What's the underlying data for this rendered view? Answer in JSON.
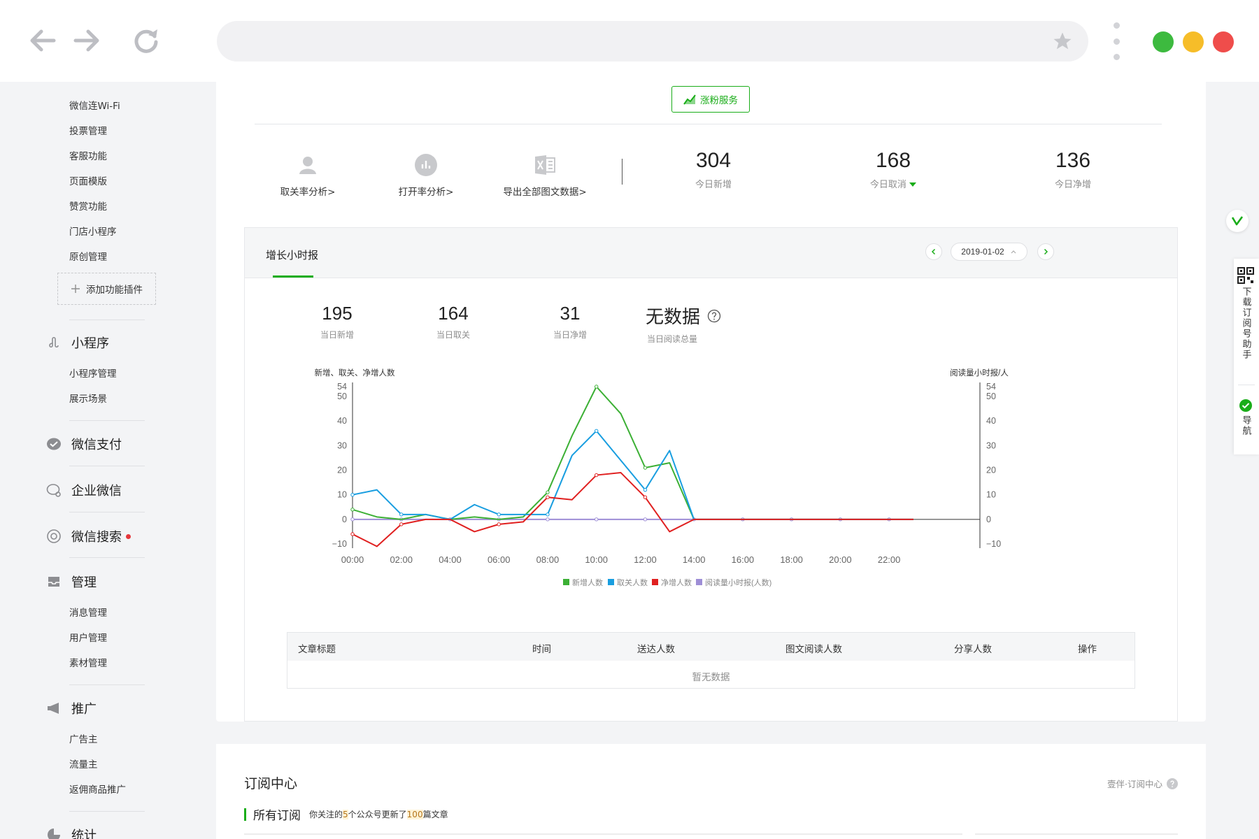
{
  "sidebar": {
    "items_top": [
      "微信连Wi-Fi",
      "投票管理",
      "客服功能",
      "页面模版",
      "赞赏功能",
      "门店小程序",
      "原创管理"
    ],
    "add_plugin": "添加功能插件",
    "mini_program": {
      "title": "小程序",
      "items": [
        "小程序管理",
        "展示场景"
      ]
    },
    "wechat_pay": "微信支付",
    "work_wechat": "企业微信",
    "wechat_search": "微信搜索",
    "manage": {
      "title": "管理",
      "items": [
        "消息管理",
        "用户管理",
        "素材管理"
      ]
    },
    "promotion": {
      "title": "推广",
      "items": [
        "广告主",
        "流量主",
        "返佣商品推广"
      ]
    },
    "stats": "统计"
  },
  "main": {
    "grow_button": "涨粉服务",
    "tools": [
      "取关率分析",
      "打开率分析",
      "导出全部图文数据"
    ],
    "tool_arrow": ">",
    "stats": [
      {
        "value": "304",
        "label": "今日新增"
      },
      {
        "value": "168",
        "label": "今日取消"
      },
      {
        "value": "136",
        "label": "今日净增"
      }
    ],
    "report": {
      "tab": "增长小时报",
      "date": "2019-01-02",
      "kpis": [
        {
          "value": "195",
          "label": "当日新增"
        },
        {
          "value": "164",
          "label": "当日取关"
        },
        {
          "value": "31",
          "label": "当日净增"
        },
        {
          "value": "无数据",
          "label": "当日阅读总量"
        }
      ]
    },
    "table": {
      "columns": [
        "文章标题",
        "时间",
        "送达人数",
        "图文阅读人数",
        "分享人数",
        "操作"
      ],
      "empty": "暂无数据"
    }
  },
  "chart_data": {
    "type": "line",
    "ylabel": "新增、取关、净增人数",
    "y2label": "阅读量小时报/人",
    "ylim": [
      -10,
      54
    ],
    "yticks": [
      "54",
      "50",
      "40",
      "30",
      "20",
      "10",
      "0",
      "−10"
    ],
    "xticks": [
      "00:00",
      "02:00",
      "04:00",
      "06:00",
      "08:00",
      "10:00",
      "12:00",
      "14:00",
      "16:00",
      "18:00",
      "20:00",
      "22:00"
    ],
    "x": [
      0,
      1,
      2,
      3,
      4,
      5,
      6,
      7,
      8,
      9,
      10,
      11,
      12,
      13,
      14,
      15,
      16,
      17,
      18,
      19,
      20,
      21,
      22,
      23
    ],
    "series": [
      {
        "name": "新增人数",
        "color": "#3cb035",
        "values": [
          4,
          1,
          0,
          2,
          0,
          1,
          0,
          1,
          11,
          34,
          54,
          43,
          21,
          23,
          0,
          0,
          0,
          0,
          0,
          0,
          0,
          0,
          0,
          0
        ]
      },
      {
        "name": "取关人数",
        "color": "#199ee0",
        "values": [
          10,
          12,
          2,
          2,
          0,
          6,
          2,
          2,
          2,
          26,
          36,
          24,
          12,
          28,
          0,
          0,
          0,
          0,
          0,
          0,
          0,
          0,
          0,
          0
        ]
      },
      {
        "name": "净增人数",
        "color": "#e02020",
        "values": [
          -6,
          -11,
          -2,
          0,
          0,
          -5,
          -2,
          -1,
          9,
          8,
          18,
          19,
          9,
          -5,
          0,
          0,
          0,
          0,
          0,
          0,
          0,
          0,
          0,
          0
        ]
      },
      {
        "name": "阅读量小时报(人数)",
        "color": "#9e8ed6",
        "values": [
          0,
          0,
          0,
          0,
          0,
          0,
          0,
          0,
          0,
          0,
          0,
          0,
          0,
          0,
          0,
          0,
          0,
          0,
          0,
          0,
          0,
          0,
          0,
          0
        ]
      }
    ],
    "legend": "bottom"
  },
  "subscription": {
    "title": "订阅中心",
    "help": "壹伴·订阅中心",
    "tab": "所有订阅",
    "desc_pre": "你关注的",
    "desc_n1": "5",
    "desc_mid": "个公众号更新了",
    "desc_n2": "100",
    "desc_post": "篇文章"
  },
  "right_panel": {
    "download": "下载订阅号助手",
    "nav": "导航"
  },
  "colors": {
    "accent": "#1aad19",
    "danger": "#e5373b"
  }
}
